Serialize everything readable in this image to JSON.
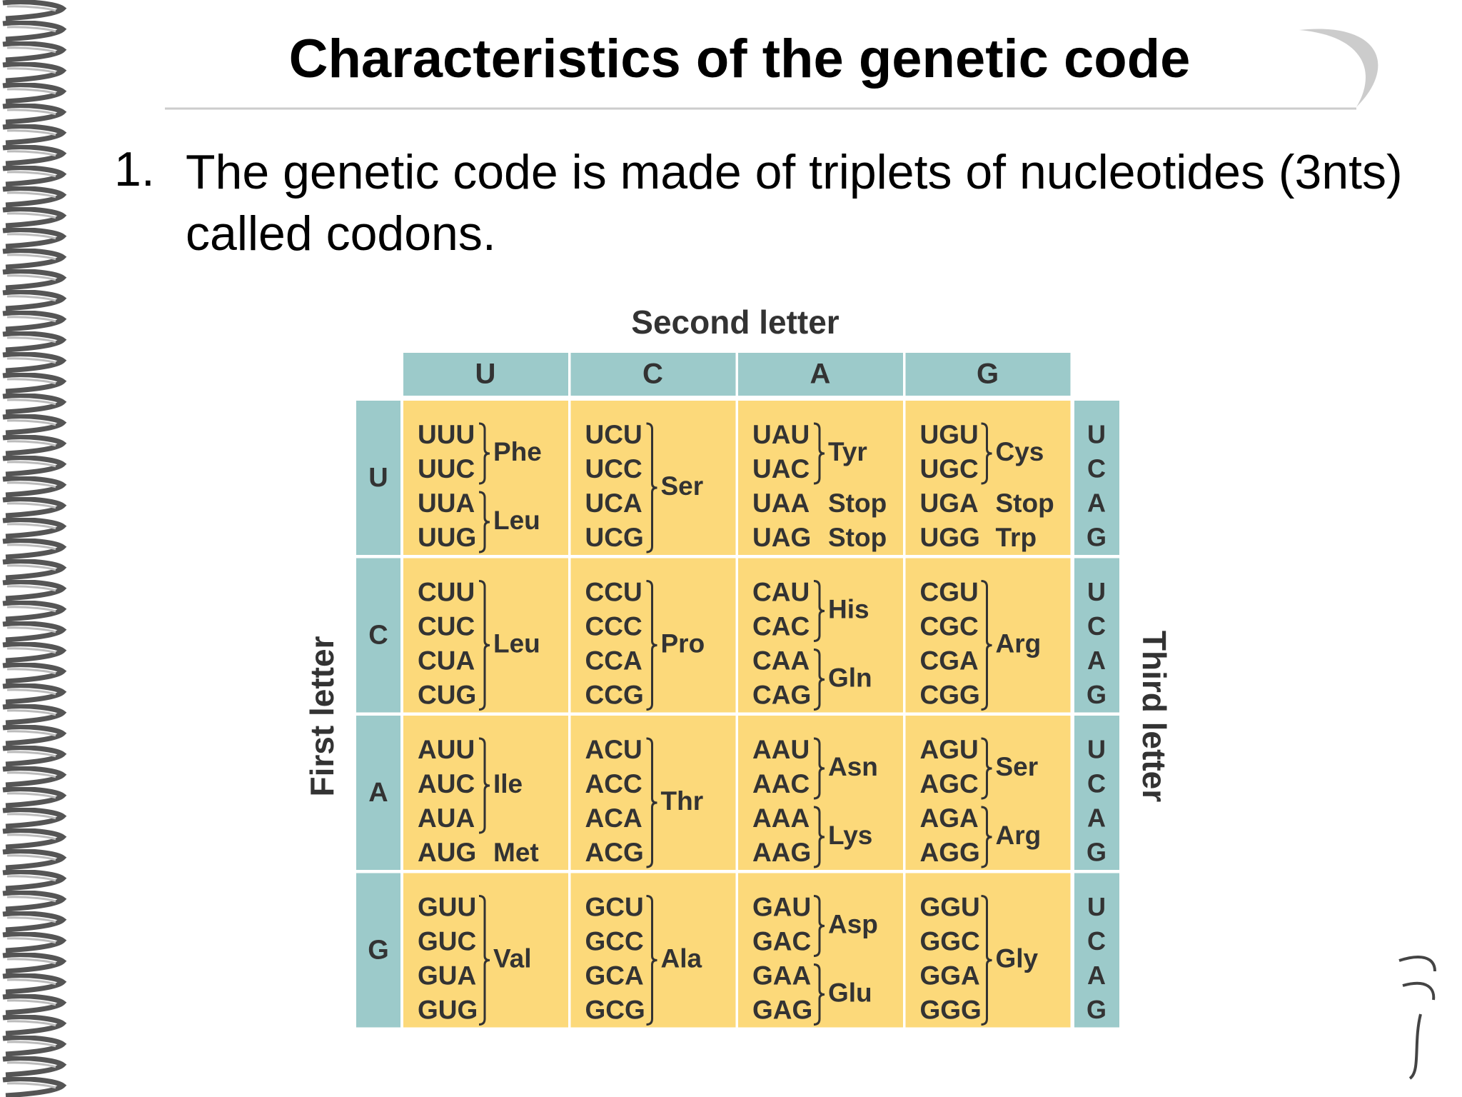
{
  "slide": {
    "title": "Characteristics of the genetic code",
    "bullet": {
      "number": "1.",
      "text": "The genetic code is made of triplets of nucleotides (3nts) called codons."
    }
  },
  "table": {
    "second_letter_label": "Second letter",
    "first_letter_label": "First letter",
    "third_letter_label": "Third letter",
    "columns": [
      "U",
      "C",
      "A",
      "G"
    ],
    "rows": [
      {
        "letter": "U",
        "third": [
          "U",
          "C",
          "A",
          "G"
        ],
        "cells": [
          {
            "groups": [
              {
                "amino": "Phe",
                "codons": [
                  "UUU",
                  "UUC"
                ]
              },
              {
                "amino": "Leu",
                "codons": [
                  "UUA",
                  "UUG"
                ]
              }
            ]
          },
          {
            "groups": [
              {
                "amino": "Ser",
                "codons": [
                  "UCU",
                  "UCC",
                  "UCA",
                  "UCG"
                ]
              }
            ]
          },
          {
            "groups": [
              {
                "amino": "Tyr",
                "codons": [
                  "UAU",
                  "UAC"
                ]
              },
              {
                "amino": "Stop",
                "codons": [
                  "UAA"
                ]
              },
              {
                "amino": "Stop",
                "codons": [
                  "UAG"
                ]
              }
            ]
          },
          {
            "groups": [
              {
                "amino": "Cys",
                "codons": [
                  "UGU",
                  "UGC"
                ]
              },
              {
                "amino": "Stop",
                "codons": [
                  "UGA"
                ]
              },
              {
                "amino": "Trp",
                "codons": [
                  "UGG"
                ]
              }
            ]
          }
        ]
      },
      {
        "letter": "C",
        "third": [
          "U",
          "C",
          "A",
          "G"
        ],
        "cells": [
          {
            "groups": [
              {
                "amino": "Leu",
                "codons": [
                  "CUU",
                  "CUC",
                  "CUA",
                  "CUG"
                ]
              }
            ]
          },
          {
            "groups": [
              {
                "amino": "Pro",
                "codons": [
                  "CCU",
                  "CCC",
                  "CCA",
                  "CCG"
                ]
              }
            ]
          },
          {
            "groups": [
              {
                "amino": "His",
                "codons": [
                  "CAU",
                  "CAC"
                ]
              },
              {
                "amino": "Gln",
                "codons": [
                  "CAA",
                  "CAG"
                ]
              }
            ]
          },
          {
            "groups": [
              {
                "amino": "Arg",
                "codons": [
                  "CGU",
                  "CGC",
                  "CGA",
                  "CGG"
                ]
              }
            ]
          }
        ]
      },
      {
        "letter": "A",
        "third": [
          "U",
          "C",
          "A",
          "G"
        ],
        "cells": [
          {
            "groups": [
              {
                "amino": "Ile",
                "codons": [
                  "AUU",
                  "AUC",
                  "AUA"
                ]
              },
              {
                "amino": "Met",
                "codons": [
                  "AUG"
                ]
              }
            ]
          },
          {
            "groups": [
              {
                "amino": "Thr",
                "codons": [
                  "ACU",
                  "ACC",
                  "ACA",
                  "ACG"
                ]
              }
            ]
          },
          {
            "groups": [
              {
                "amino": "Asn",
                "codons": [
                  "AAU",
                  "AAC"
                ]
              },
              {
                "amino": "Lys",
                "codons": [
                  "AAA",
                  "AAG"
                ]
              }
            ]
          },
          {
            "groups": [
              {
                "amino": "Ser",
                "codons": [
                  "AGU",
                  "AGC"
                ]
              },
              {
                "amino": "Arg",
                "codons": [
                  "AGA",
                  "AGG"
                ]
              }
            ]
          }
        ]
      },
      {
        "letter": "G",
        "third": [
          "U",
          "C",
          "A",
          "G"
        ],
        "cells": [
          {
            "groups": [
              {
                "amino": "Val",
                "codons": [
                  "GUU",
                  "GUC",
                  "GUA",
                  "GUG"
                ]
              }
            ]
          },
          {
            "groups": [
              {
                "amino": "Ala",
                "codons": [
                  "GCU",
                  "GCC",
                  "GCA",
                  "GCG"
                ]
              }
            ]
          },
          {
            "groups": [
              {
                "amino": "Asp",
                "codons": [
                  "GAU",
                  "GAC"
                ]
              },
              {
                "amino": "Glu",
                "codons": [
                  "GAA",
                  "GAG"
                ]
              }
            ]
          },
          {
            "groups": [
              {
                "amino": "Gly",
                "codons": [
                  "GGU",
                  "GGC",
                  "GGA",
                  "GGG"
                ]
              }
            ]
          }
        ]
      }
    ]
  }
}
